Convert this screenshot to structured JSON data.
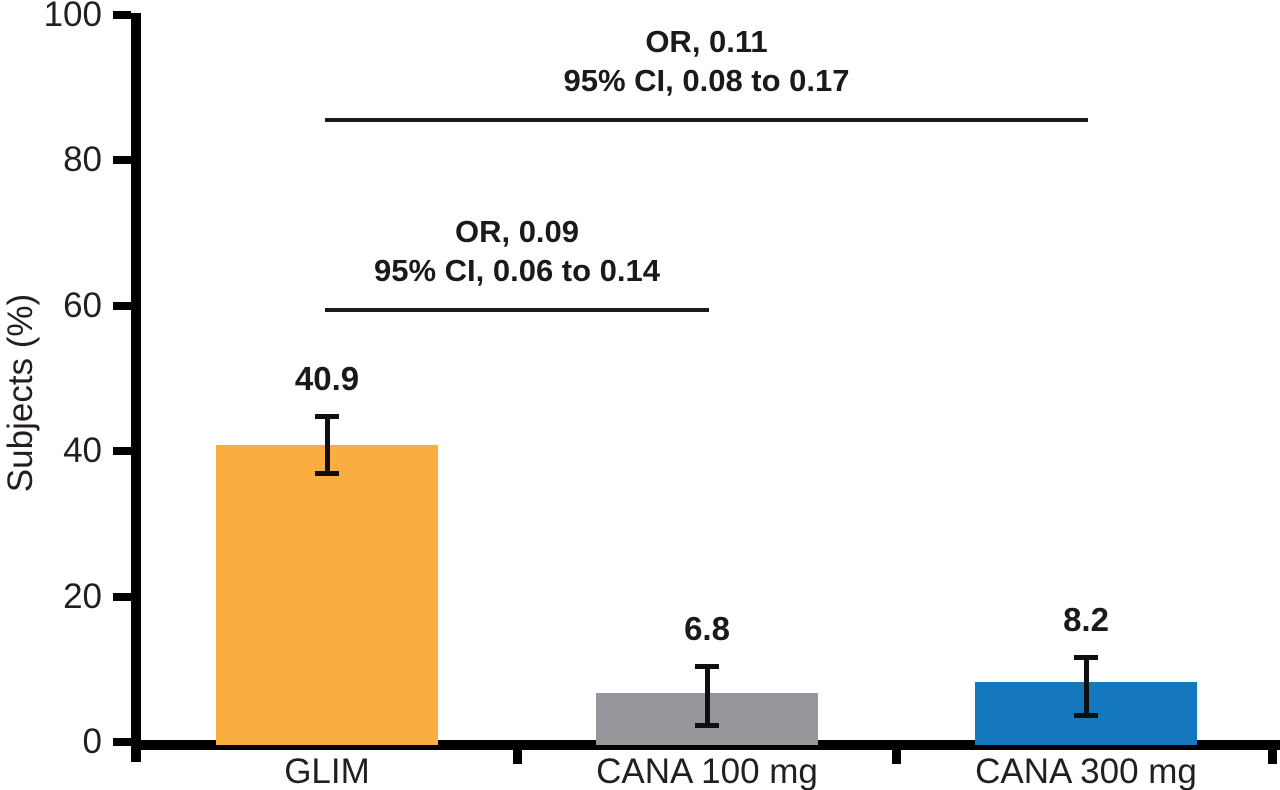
{
  "chart_data": {
    "type": "bar",
    "title": "",
    "xlabel": "",
    "ylabel": "Subjects (%)",
    "ylim": [
      0,
      100
    ],
    "y_ticks": [
      0,
      20,
      40,
      60,
      80,
      100
    ],
    "grid": false,
    "legend": false,
    "categories": [
      "GLIM",
      "CANA 100 mg",
      "CANA 300 mg"
    ],
    "series": [
      {
        "name": "Subjects (%)",
        "values": [
          40.9,
          6.8,
          8.2
        ],
        "value_labels": [
          "40.9",
          "6.8",
          "8.2"
        ],
        "bar_colors": [
          "#FAAE42",
          "#95979A",
          "#1578BE"
        ],
        "error_bars": [
          {
            "low": 36.9,
            "high": 44.8
          },
          {
            "low": 2.2,
            "high": 10.5
          },
          {
            "low": 3.6,
            "high": 11.7
          }
        ]
      }
    ],
    "annotations": [
      {
        "line1": "OR, 0.09",
        "line2": "95% CI, 0.06 to 0.14",
        "from_category": "GLIM",
        "to_category": "CANA 100 mg",
        "from_index": 0,
        "to_index": 1,
        "line_y_value": 59.7
      },
      {
        "line1": "OR, 0.11",
        "line2": "95% CI, 0.08 to 0.17",
        "from_category": "GLIM",
        "to_category": "CANA 300 mg",
        "from_index": 0,
        "to_index": 2,
        "line_y_value": 85.8
      }
    ],
    "colors": {
      "axis": "#000000",
      "text": "#231F20",
      "bar_glim": "#FAAE42",
      "bar_cana100": "#95979A",
      "bar_cana300": "#1578BE"
    }
  }
}
